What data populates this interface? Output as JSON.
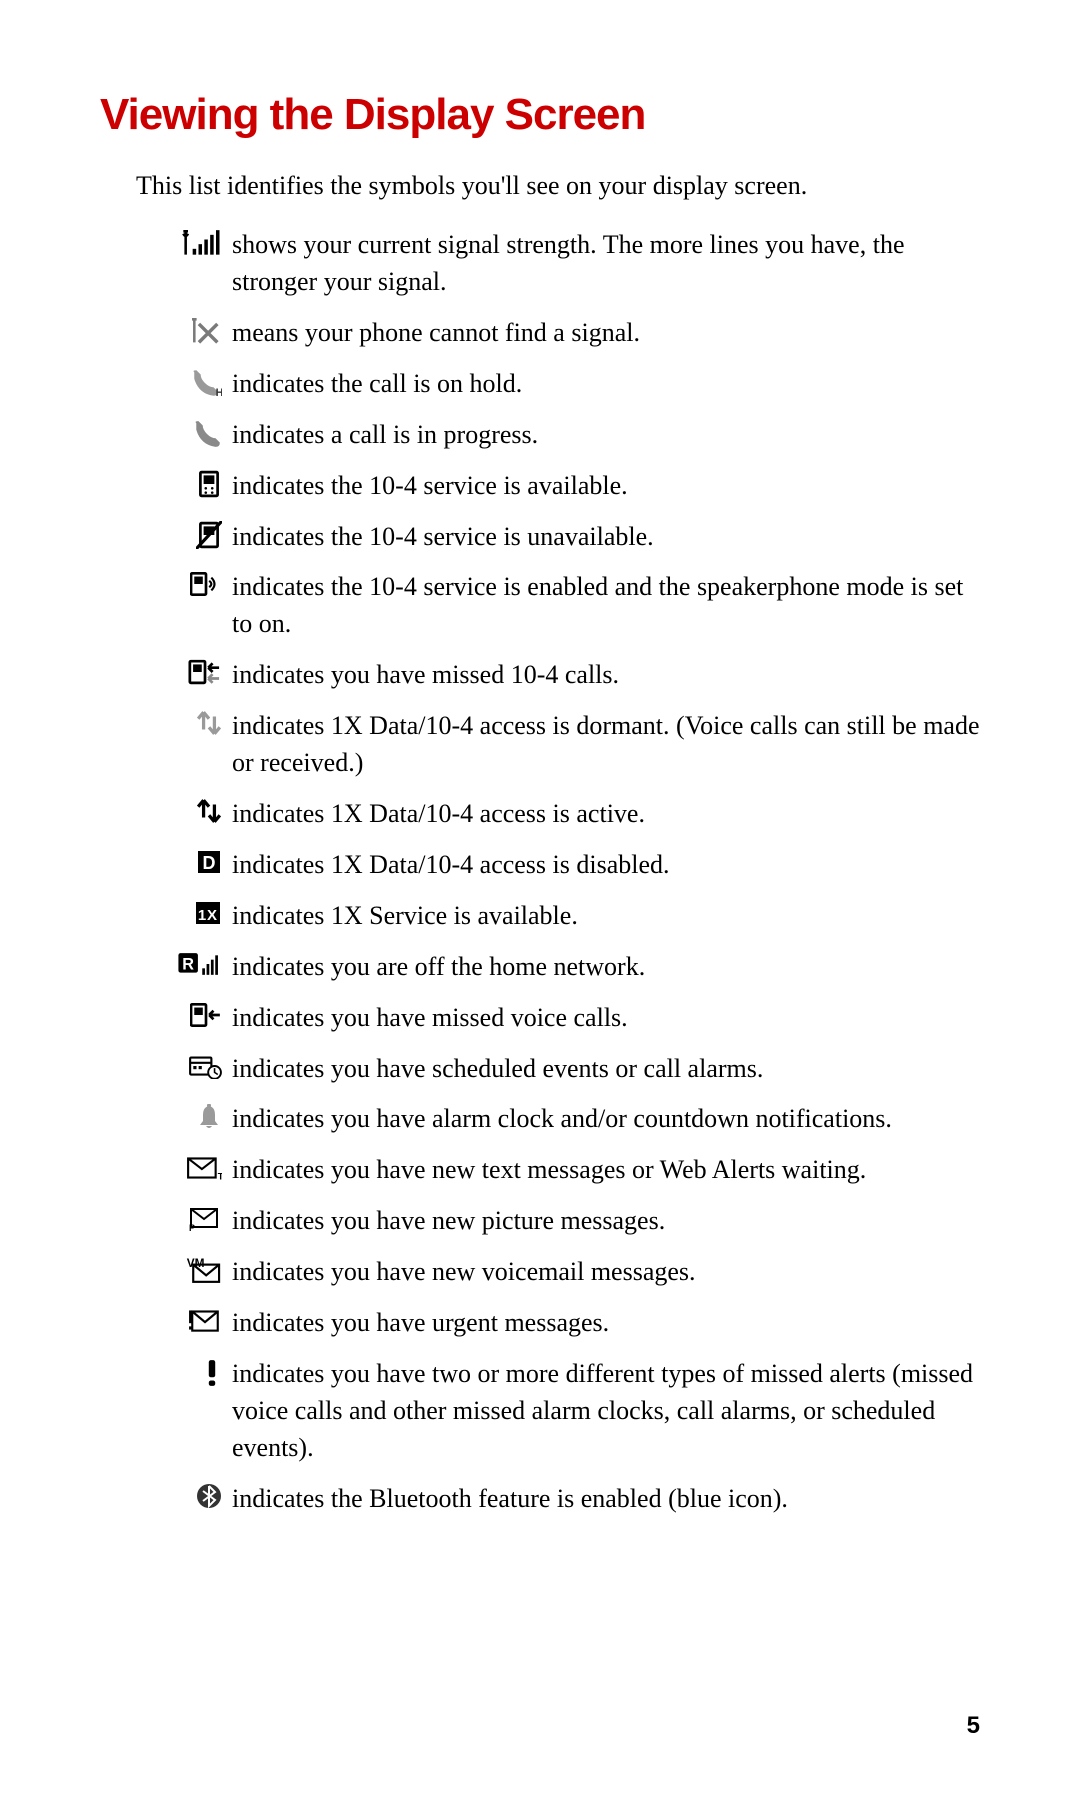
{
  "title": "Viewing the Display Screen",
  "intro": "This list identifies the symbols you'll see on your display screen.",
  "page_number": "5",
  "colors": {
    "title": "#cc0000",
    "text": "#000000",
    "icon_dark": "#000000",
    "icon_gray": "#808080",
    "icon_lightgray": "#a8a8a8",
    "background": "#ffffff"
  },
  "items": [
    {
      "icon": "signal-strength-icon",
      "desc": "shows your current signal strength. The more lines you have, the stronger your signal."
    },
    {
      "icon": "no-signal-icon",
      "desc": "means your phone cannot find a signal."
    },
    {
      "icon": "call-hold-icon",
      "desc": "indicates the call is on hold."
    },
    {
      "icon": "call-progress-icon",
      "desc": "indicates a call is in progress."
    },
    {
      "icon": "ten4-available-icon",
      "desc": "indicates the 10-4 service is available."
    },
    {
      "icon": "ten4-unavailable-icon",
      "desc": "indicates the 10-4 service is unavailable."
    },
    {
      "icon": "ten4-speaker-icon",
      "desc": "indicates the 10-4 service is enabled and the speakerphone mode is set to on."
    },
    {
      "icon": "ten4-missed-icon",
      "desc": "indicates you have missed 10-4 calls."
    },
    {
      "icon": "data-dormant-icon",
      "desc": "indicates 1X Data/10-4 access is dormant. (Voice calls can still be made or received.)"
    },
    {
      "icon": "data-active-icon",
      "desc": "indicates 1X Data/10-4 access is active."
    },
    {
      "icon": "data-disabled-icon",
      "desc": "indicates 1X Data/10-4 access is disabled."
    },
    {
      "icon": "onex-service-icon",
      "desc": "indicates 1X Service is available."
    },
    {
      "icon": "roaming-icon",
      "desc": "indicates you are off the home network."
    },
    {
      "icon": "missed-voice-icon",
      "desc": "indicates you have missed voice calls."
    },
    {
      "icon": "scheduled-events-icon",
      "desc": "indicates you have scheduled events or call alarms."
    },
    {
      "icon": "alarm-clock-icon",
      "desc": "indicates you have alarm clock and/or countdown notifications."
    },
    {
      "icon": "text-message-icon",
      "desc": "indicates you have new text messages or Web Alerts waiting."
    },
    {
      "icon": "picture-message-icon",
      "desc": "indicates you have new picture messages."
    },
    {
      "icon": "voicemail-icon",
      "desc": "indicates you have new voicemail messages."
    },
    {
      "icon": "urgent-message-icon",
      "desc": "indicates you have urgent messages."
    },
    {
      "icon": "missed-alerts-icon",
      "desc": "indicates you have two or more different types of missed alerts (missed voice calls and other missed alarm clocks, call alarms, or scheduled events)."
    },
    {
      "icon": "bluetooth-icon",
      "desc": "indicates the Bluetooth feature is enabled (blue icon)."
    }
  ]
}
